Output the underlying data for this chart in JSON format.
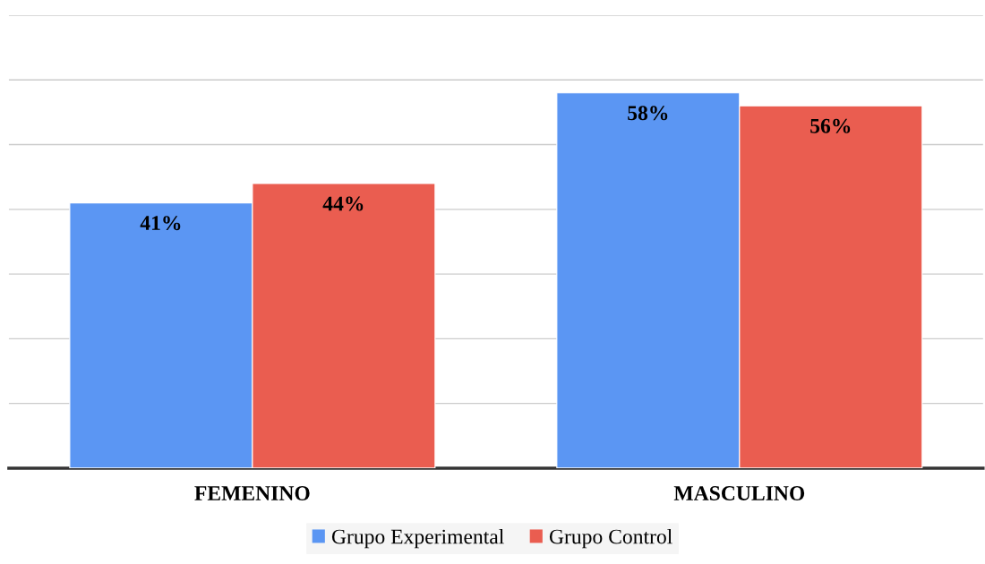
{
  "chart_data": {
    "type": "bar",
    "categories": [
      "FEMENINO",
      "MASCULINO"
    ],
    "series": [
      {
        "name": "Grupo Experimental",
        "color": "#5b96f3",
        "values": [
          41,
          58
        ],
        "value_labels": [
          "41%",
          "58%"
        ]
      },
      {
        "name": "Grupo Control",
        "color": "#ea5d50",
        "values": [
          44,
          56
        ],
        "value_labels": [
          "44%",
          "56%"
        ]
      }
    ],
    "ylim": [
      0,
      70
    ],
    "yticks": [
      {
        "value": 0,
        "label": null
      },
      {
        "value": 10,
        "label": null
      },
      {
        "value": 20,
        "label": null
      },
      {
        "value": 30,
        "label": null
      },
      {
        "value": 40,
        "label": null
      },
      {
        "value": 50,
        "label": null
      },
      {
        "value": 60,
        "label": null
      },
      {
        "value": 70,
        "label": null
      }
    ],
    "tick_labels": "x",
    "grid": "y",
    "legend": "bottom"
  }
}
